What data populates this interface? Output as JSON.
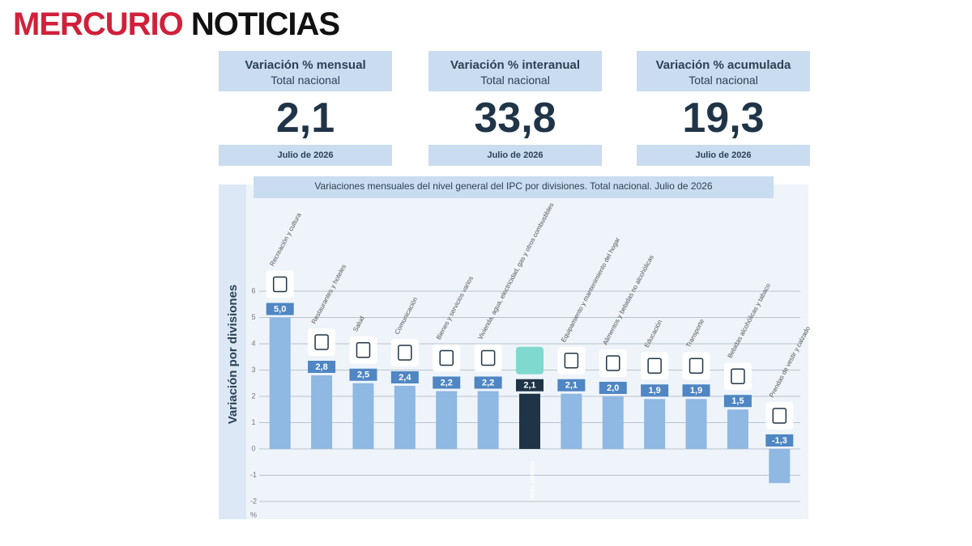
{
  "header": {
    "brand_red": "MERCURIO",
    "brand_black": "NOTICIAS"
  },
  "cards": [
    {
      "title": "Variación % mensual",
      "subtitle": "Total nacional",
      "value": "2,1",
      "date": "Julio de 2026"
    },
    {
      "title": "Variación % interanual",
      "subtitle": "Total nacional",
      "value": "33,8",
      "date": "Julio de 2026"
    },
    {
      "title": "Variación % acumulada",
      "subtitle": "Total nacional",
      "value": "19,3",
      "date": "Julio de 2026"
    }
  ],
  "chart_data": {
    "type": "bar",
    "title": "Variaciones mensuales del nivel general del IPC por divisiones. Total nacional. Julio de 2026",
    "y_label": "Variación por divisiones",
    "unit": "%",
    "categories": [
      "Recreación y cultura",
      "Restaurantes y hoteles",
      "Salud",
      "Comunicación",
      "Bienes y servicios varios",
      "Vivienda, agua, electricidad, gas y otros combustibles",
      "NIVEL GENERAL",
      "Equipamiento y mantenimiento del hogar",
      "Alimentos y bebidas no alcohólicas",
      "Educación",
      "Transporte",
      "Bebidas alcohólicas y tabaco",
      "Prendas de vestir y calzado"
    ],
    "values": [
      5.0,
      2.8,
      2.5,
      2.4,
      2.2,
      2.2,
      2.1,
      2.1,
      2.0,
      1.9,
      1.9,
      1.5,
      -1.3
    ],
    "value_labels": [
      "5,0",
      "2,8",
      "2,5",
      "2,4",
      "2,2",
      "2,2",
      "2,1",
      "2,1",
      "2,0",
      "1,9",
      "1,9",
      "1,5",
      "-1,3"
    ],
    "colors": [
      "#8fb8e3",
      "#8fb8e3",
      "#8fb8e3",
      "#8fb8e3",
      "#8fb8e3",
      "#8fb8e3",
      "#1f3447",
      "#8fb8e3",
      "#8fb8e3",
      "#8fb8e3",
      "#8fb8e3",
      "#8fb8e3",
      "#8fb8e3"
    ],
    "label_colors": [
      "#4f86c3",
      "#4f86c3",
      "#4f86c3",
      "#4f86c3",
      "#4f86c3",
      "#4f86c3",
      "#1f3447",
      "#4f86c3",
      "#4f86c3",
      "#4f86c3",
      "#4f86c3",
      "#4f86c3",
      "#4f86c3"
    ],
    "ylim": [
      -2,
      6
    ],
    "yticks": [
      6,
      5,
      4,
      3,
      2,
      1,
      0,
      -1,
      -2
    ],
    "grid": true
  }
}
